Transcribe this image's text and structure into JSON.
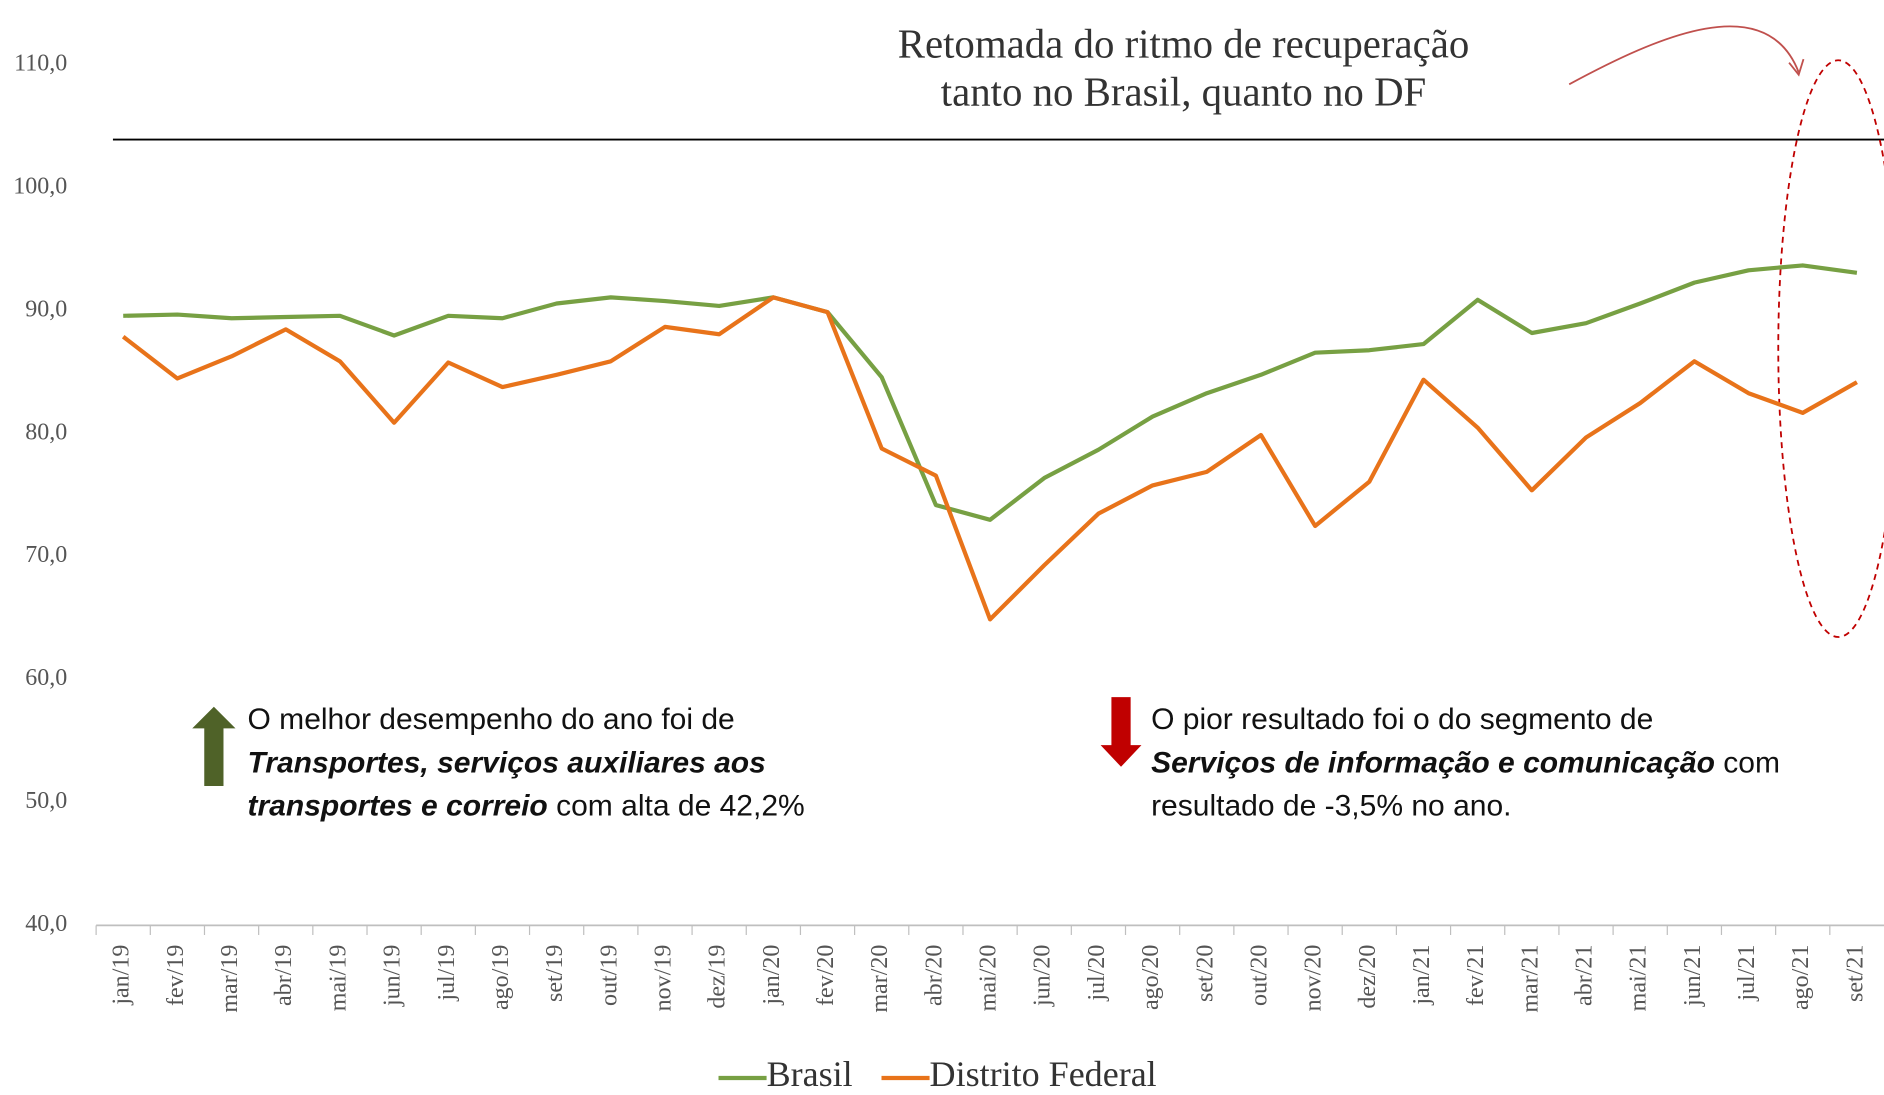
{
  "chart_data": {
    "type": "line",
    "annotation_lines": [
      "Retomada do ritmo de recuperação",
      "tanto no Brasil, quanto no DF"
    ],
    "categories": [
      "jan/19",
      "fev/19",
      "mar/19",
      "abr/19",
      "mai/19",
      "jun/19",
      "jul/19",
      "ago/19",
      "set/19",
      "out/19",
      "nov/19",
      "dez/19",
      "jan/20",
      "fev/20",
      "mar/20",
      "abr/20",
      "mai/20",
      "jun/20",
      "jul/20",
      "ago/20",
      "set/20",
      "out/20",
      "nov/20",
      "dez/20",
      "jan/21",
      "fev/21",
      "mar/21",
      "abr/21",
      "mai/21",
      "jun/21",
      "jul/21",
      "ago/21",
      "set/21"
    ],
    "series": [
      {
        "name": "Brasil",
        "color": "#77a043",
        "values": [
          89.6,
          89.7,
          89.4,
          89.5,
          89.6,
          88.0,
          89.6,
          89.4,
          90.6,
          91.1,
          90.8,
          90.4,
          91.1,
          89.9,
          84.6,
          74.2,
          73.0,
          76.4,
          78.7,
          81.4,
          83.3,
          84.8,
          86.6,
          86.8,
          87.3,
          90.9,
          88.2,
          89.0,
          90.6,
          92.3,
          93.3,
          93.7,
          93.1
        ]
      },
      {
        "name": "Distrito Federal",
        "color": "#e8731a",
        "values": [
          87.9,
          84.5,
          86.3,
          88.5,
          85.9,
          80.9,
          85.8,
          83.8,
          84.8,
          85.9,
          88.7,
          88.1,
          91.1,
          89.9,
          78.8,
          76.6,
          64.9,
          69.3,
          73.5,
          75.8,
          76.9,
          79.9,
          72.5,
          76.1,
          84.4,
          80.5,
          75.4,
          79.7,
          82.5,
          85.9,
          83.3,
          81.7,
          84.2
        ]
      }
    ],
    "ylim": [
      40,
      110
    ],
    "yticks": [
      {
        "value": 40,
        "label": "40,0"
      },
      {
        "value": 50,
        "label": "50,0"
      },
      {
        "value": 60,
        "label": "60,0"
      },
      {
        "value": 70,
        "label": "70,0"
      },
      {
        "value": 80,
        "label": "80,0"
      },
      {
        "value": 90,
        "label": "90,0"
      },
      {
        "value": 100,
        "label": "100,0"
      },
      {
        "value": 110,
        "label": "110,0"
      }
    ],
    "grid": false,
    "legend": "bottom",
    "notes": [
      {
        "lines": [
          [
            {
              "text": "O melhor desempenho do ano foi de",
              "bold": false
            }
          ],
          [
            {
              "text": "Transportes, serviços auxiliares aos",
              "bold": true
            }
          ],
          [
            {
              "text": "transportes e correio",
              "bold": true
            },
            {
              "text": " com alta de 42,2%",
              "bold": false
            }
          ]
        ]
      },
      {
        "lines": [
          [
            {
              "text": "O pior resultado foi o do segmento de",
              "bold": false
            }
          ],
          [
            {
              "text": "Serviços de informação e comunicação",
              "bold": true
            },
            {
              "text": " com",
              "bold": false
            }
          ],
          [
            {
              "text": "resultado de -3,5% no ano.",
              "bold": false
            }
          ]
        ]
      }
    ]
  }
}
